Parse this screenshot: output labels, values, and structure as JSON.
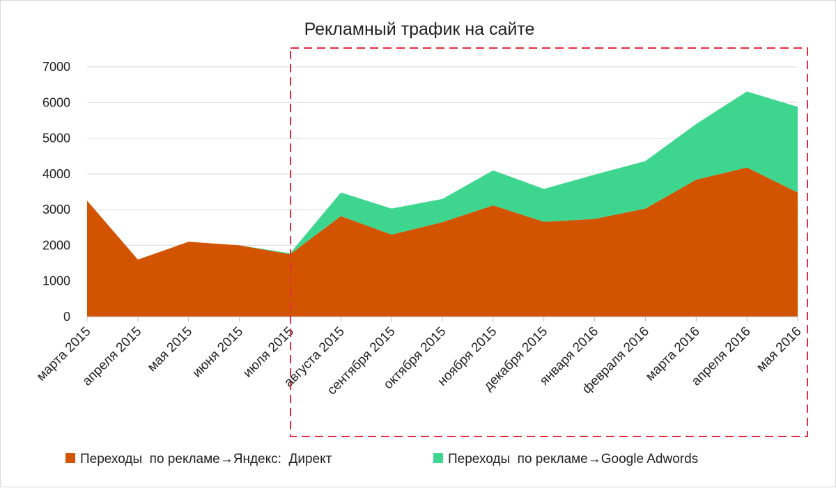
{
  "chart_data": {
    "type": "area",
    "stacked": true,
    "title": "Рекламный трафик на сайте",
    "xlabel": "",
    "ylabel": "",
    "categories": [
      "марта 2015",
      "апреля 2015",
      "мая 2015",
      "июня 2015",
      "июля 2015",
      "августа 2015",
      "сентября 2015",
      "октября 2015",
      "ноября 2015",
      "декабря 2015",
      "января 2016",
      "февраля 2016",
      "марта 2016",
      "апреля 2016",
      "мая 2016"
    ],
    "series": [
      {
        "name": "Переходы  по рекламе→Яндекс:  Директ",
        "color": "#d35400",
        "values": [
          3250,
          1600,
          2100,
          2000,
          1750,
          2820,
          2300,
          2650,
          3120,
          2660,
          2740,
          3030,
          3840,
          4180,
          3480
        ]
      },
      {
        "name": "Переходы  по рекламе→Google Adwords",
        "color": "#3ed68f",
        "values": [
          0,
          0,
          0,
          0,
          30,
          660,
          730,
          650,
          980,
          920,
          1240,
          1330,
          1560,
          2130,
          2400
        ]
      }
    ],
    "ylim": [
      0,
      7000
    ],
    "yticks": [
      0,
      1000,
      2000,
      3000,
      4000,
      5000,
      6000,
      7000
    ],
    "grid": true,
    "legend_position": "bottom",
    "annotation": "red dashed highlight box around августа 2015 – мая 2016"
  }
}
